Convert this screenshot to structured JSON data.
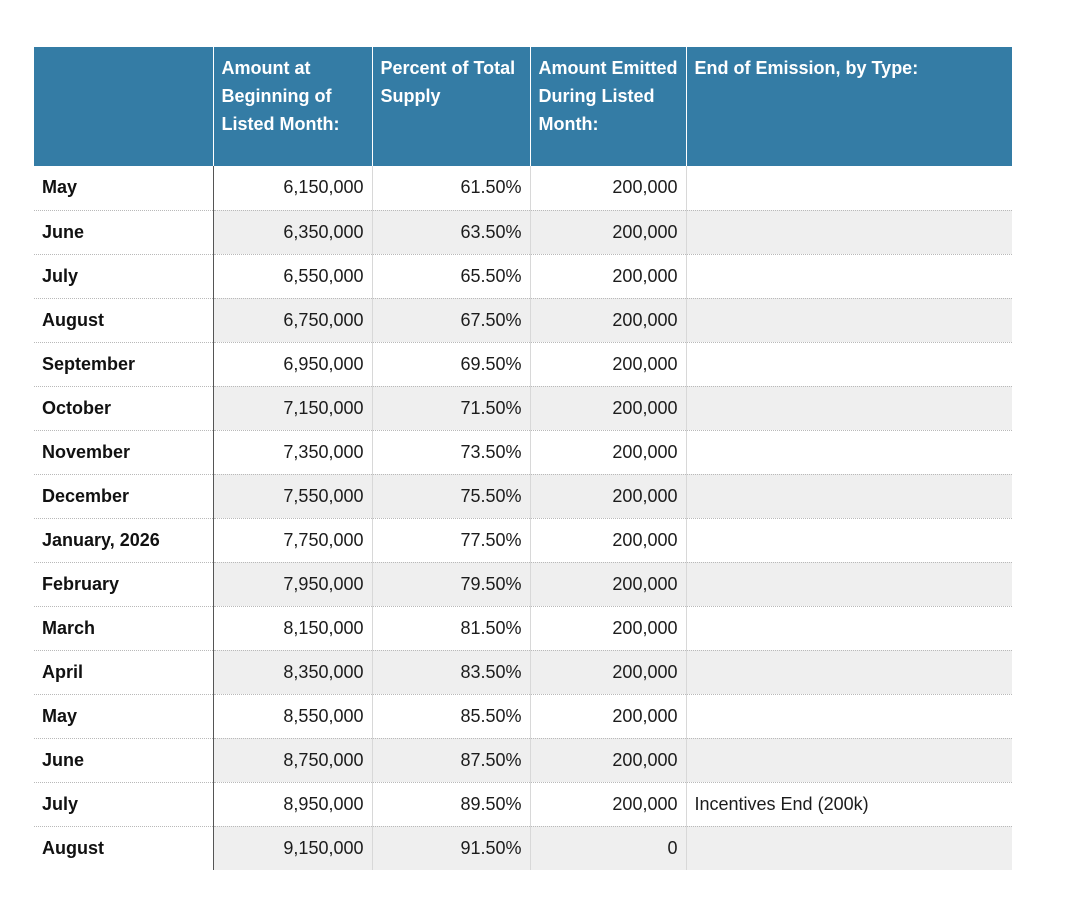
{
  "table": {
    "headers": [
      "",
      "Amount at Beginning of Listed Month:",
      "Percent of Total Supply",
      "Amount Emitted During Listed Month:",
      "End of Emission, by Type:"
    ],
    "rows": [
      {
        "month": "May",
        "amount": "6,150,000",
        "percent": "61.50%",
        "emitted": "200,000",
        "end": ""
      },
      {
        "month": "June",
        "amount": "6,350,000",
        "percent": "63.50%",
        "emitted": "200,000",
        "end": ""
      },
      {
        "month": "July",
        "amount": "6,550,000",
        "percent": "65.50%",
        "emitted": "200,000",
        "end": ""
      },
      {
        "month": "August",
        "amount": "6,750,000",
        "percent": "67.50%",
        "emitted": "200,000",
        "end": ""
      },
      {
        "month": "September",
        "amount": "6,950,000",
        "percent": "69.50%",
        "emitted": "200,000",
        "end": ""
      },
      {
        "month": "October",
        "amount": "7,150,000",
        "percent": "71.50%",
        "emitted": "200,000",
        "end": ""
      },
      {
        "month": "November",
        "amount": "7,350,000",
        "percent": "73.50%",
        "emitted": "200,000",
        "end": ""
      },
      {
        "month": "December",
        "amount": "7,550,000",
        "percent": "75.50%",
        "emitted": "200,000",
        "end": ""
      },
      {
        "month": "January, 2026",
        "amount": "7,750,000",
        "percent": "77.50%",
        "emitted": "200,000",
        "end": ""
      },
      {
        "month": "February",
        "amount": "7,950,000",
        "percent": "79.50%",
        "emitted": "200,000",
        "end": ""
      },
      {
        "month": "March",
        "amount": "8,150,000",
        "percent": "81.50%",
        "emitted": "200,000",
        "end": ""
      },
      {
        "month": "April",
        "amount": "8,350,000",
        "percent": "83.50%",
        "emitted": "200,000",
        "end": ""
      },
      {
        "month": "May",
        "amount": "8,550,000",
        "percent": "85.50%",
        "emitted": "200,000",
        "end": ""
      },
      {
        "month": "June",
        "amount": "8,750,000",
        "percent": "87.50%",
        "emitted": "200,000",
        "end": ""
      },
      {
        "month": "July",
        "amount": "8,950,000",
        "percent": "89.50%",
        "emitted": "200,000",
        "end": "Incentives End (200k)"
      },
      {
        "month": "August",
        "amount": "9,150,000",
        "percent": "91.50%",
        "emitted": "0",
        "end": ""
      }
    ]
  },
  "colors": {
    "header_bg": "#347ca5",
    "header_text": "#ffffff",
    "stripe_bg": "#efefef"
  }
}
